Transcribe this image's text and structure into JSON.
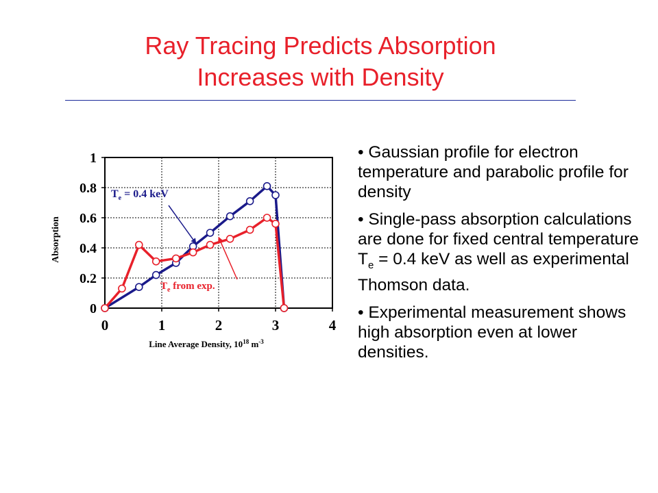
{
  "slide": {
    "title_line1": "Ray Tracing Predicts Absorption",
    "title_line2": "Increases with Density"
  },
  "bullets": {
    "b1": "Gaussian profile for electron temperature and parabolic profile for density",
    "b2_before": "Single-pass absorption calculations are done for fixed central temperature T",
    "b2_sub": "e",
    "b2_after": " = 0.4 keV as well as experimental Thomson data.",
    "b3": "Experimental measurement shows high absorption even at lower densities."
  },
  "chart_data": {
    "type": "line",
    "xlabel": "Line Average Density, 10",
    "xlabel_sup1": "18",
    "xlabel_unit": " m",
    "xlabel_sup2": "-3",
    "ylabel": "Absorption",
    "xlim": [
      0,
      4
    ],
    "ylim": [
      0,
      1
    ],
    "x_ticks": [
      "0",
      "1",
      "2",
      "3",
      "4"
    ],
    "y_ticks": [
      "0",
      "0.2",
      "0.4",
      "0.6",
      "0.8",
      "1"
    ],
    "grid": true,
    "series": [
      {
        "color": "#1a1a8a",
        "x": [
          0.0,
          0.6,
          0.9,
          1.25,
          1.55,
          1.85,
          2.2,
          2.55,
          2.85,
          3.0,
          3.15
        ],
        "y": [
          0.0,
          0.14,
          0.22,
          0.3,
          0.41,
          0.5,
          0.61,
          0.71,
          0.81,
          0.75,
          0.0
        ]
      },
      {
        "color": "#e8202a",
        "x": [
          0.0,
          0.3,
          0.6,
          0.9,
          1.25,
          1.55,
          1.85,
          2.2,
          2.55,
          2.85,
          3.0,
          3.15
        ],
        "y": [
          0.0,
          0.13,
          0.42,
          0.31,
          0.33,
          0.37,
          0.42,
          0.46,
          0.52,
          0.6,
          0.56,
          0.0
        ]
      }
    ],
    "annotations": [
      {
        "text": "T",
        "sub": "e",
        "rest": " = 0.4 keV",
        "color": "#1a1a8a",
        "arrow_x": 1.6,
        "arrow_y": 0.43
      },
      {
        "text": "T",
        "sub": "e",
        "rest": " from exp.",
        "color": "#e8202a",
        "arrow_x": 2.0,
        "arrow_y": 0.47
      }
    ]
  }
}
